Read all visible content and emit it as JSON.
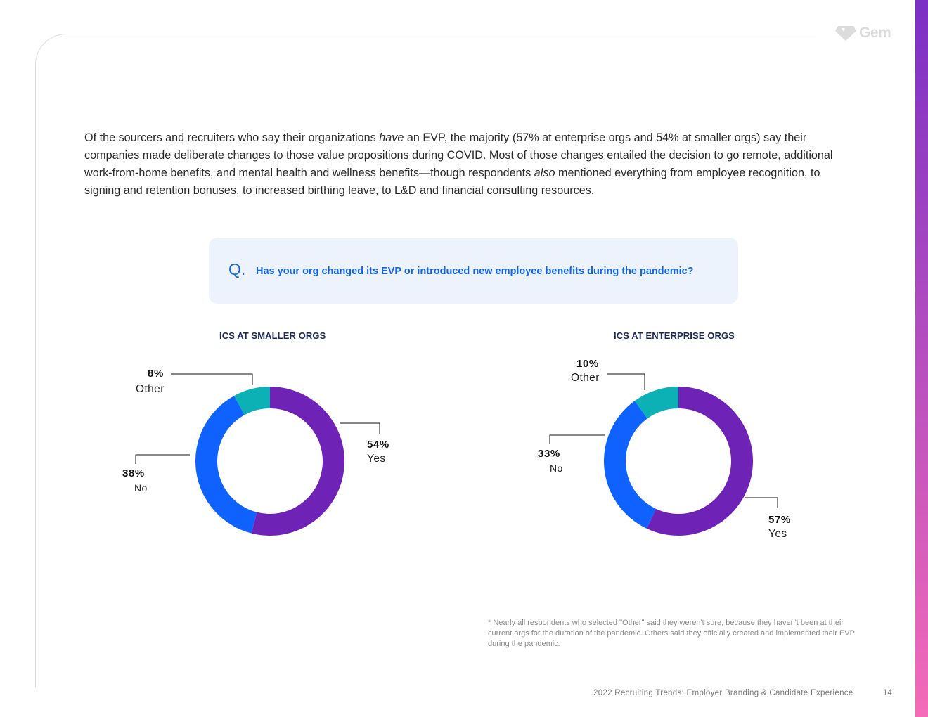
{
  "brand": {
    "logo_text": "Gem",
    "accent_gradient": [
      "#7b2fc4",
      "#f46bb8"
    ]
  },
  "intro": {
    "part1": "Of the sourcers and recruiters who say their organizations ",
    "em1": "have",
    "part2": " an EVP, the majority (57% at enterprise orgs and 54% at smaller orgs) say their companies made deliberate changes to those value propositions during COVID. Most of those changes entailed the decision to go remote, additional work-from-home benefits, and mental health and wellness benefits—though respondents ",
    "em2": "also",
    "part3": " mentioned everything from employee recognition, to signing and retention bonuses, to increased birthing leave, to L&D and financial consulting resources."
  },
  "question": {
    "mark": "Q.",
    "text": "Has your org changed its EVP or introduced new employee benefits during the pandemic?"
  },
  "chart_data": [
    {
      "type": "pie",
      "title": "ICS AT SMALLER ORGS",
      "categories": [
        "Yes",
        "No",
        "Other"
      ],
      "values": [
        54,
        38,
        8
      ],
      "value_labels": [
        "54%",
        "38%",
        "8%"
      ],
      "colors": [
        "#6f22b6",
        "#0f62fe",
        "#0bb1b5"
      ]
    },
    {
      "type": "pie",
      "title": "ICS AT ENTERPRISE ORGS",
      "categories": [
        "Yes",
        "No",
        "Other"
      ],
      "values": [
        57,
        33,
        10
      ],
      "value_labels": [
        "57%",
        "33%",
        "10%"
      ],
      "colors": [
        "#6f22b6",
        "#0f62fe",
        "#0bb1b5"
      ]
    }
  ],
  "footnote": "* Nearly all respondents who selected \"Other\" said they weren't sure, because they haven't been at their current orgs for the duration of the pandemic. Others said they officially created and implemented their EVP during the pandemic.",
  "footer": {
    "title": "2022 Recruiting Trends: Employer Branding & Candidate Experience",
    "page": "14"
  }
}
